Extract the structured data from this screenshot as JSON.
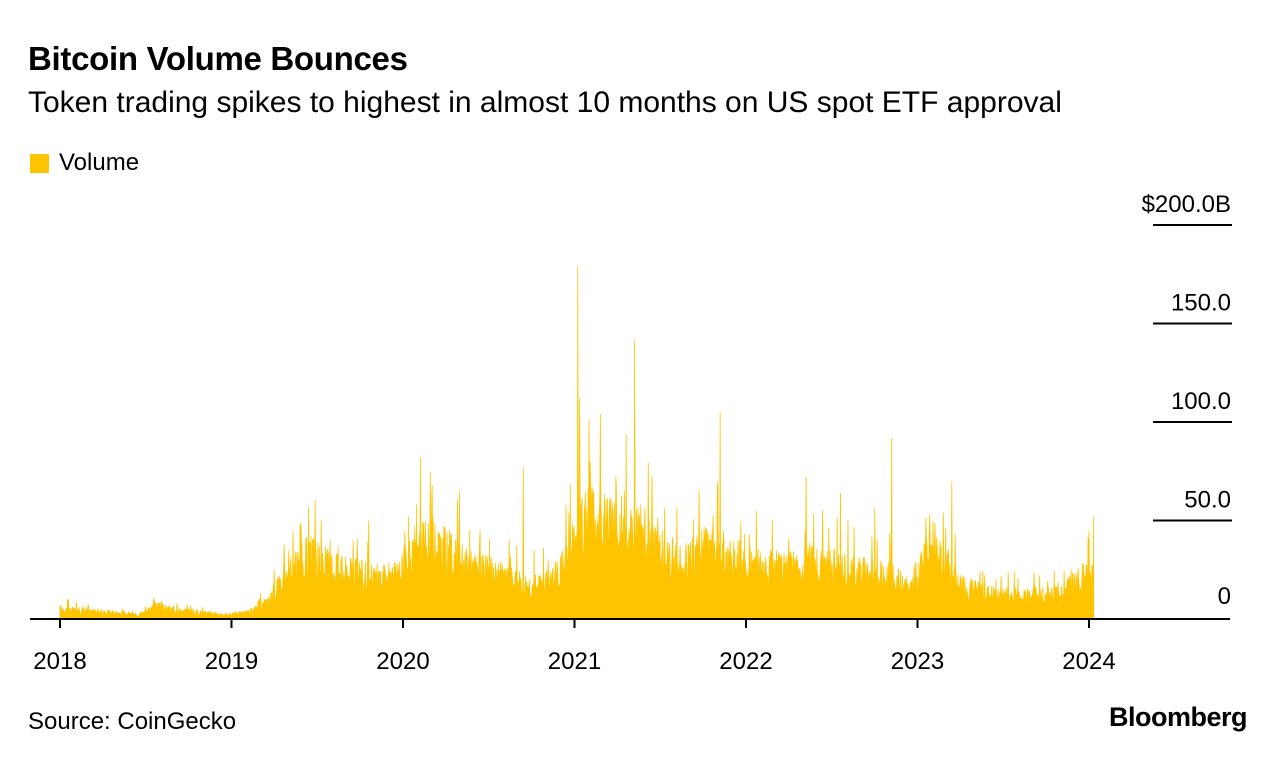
{
  "header": {
    "title": "Bitcoin Volume Bounces",
    "subtitle": "Token trading spikes to highest in almost 10 months on US spot ETF approval"
  },
  "legend": {
    "label": "Volume",
    "color": "#ffc400"
  },
  "footer": {
    "source": "Source: CoinGecko",
    "logo": "Bloomberg"
  },
  "colors": {
    "bar": "#ffc400",
    "axis": "#000000",
    "grid": "#000000"
  },
  "chart_data": {
    "type": "area",
    "title": "Bitcoin Volume Bounces",
    "series_name": "Volume",
    "units": "billions USD",
    "xlim": [
      2018.0,
      2024.75
    ],
    "ylim": [
      0,
      200
    ],
    "yticks": [
      {
        "value": 200,
        "label": "$200.0B"
      },
      {
        "value": 150,
        "label": "150.0"
      },
      {
        "value": 100,
        "label": "100.0"
      },
      {
        "value": 50,
        "label": "50.0"
      },
      {
        "value": 0,
        "label": "0"
      }
    ],
    "xticks": [
      {
        "value": 2018,
        "label": "2018"
      },
      {
        "value": 2019,
        "label": "2019"
      },
      {
        "value": 2020,
        "label": "2020"
      },
      {
        "value": 2021,
        "label": "2021"
      },
      {
        "value": 2022,
        "label": "2022"
      },
      {
        "value": 2023,
        "label": "2023"
      },
      {
        "value": 2024,
        "label": "2024"
      }
    ],
    "baseline_points": [
      [
        2018.0,
        5
      ],
      [
        2018.1,
        4
      ],
      [
        2018.3,
        3
      ],
      [
        2018.45,
        2
      ],
      [
        2018.55,
        6
      ],
      [
        2018.7,
        4
      ],
      [
        2018.85,
        3
      ],
      [
        2018.95,
        2
      ],
      [
        2019.1,
        3
      ],
      [
        2019.2,
        8
      ],
      [
        2019.3,
        18
      ],
      [
        2019.45,
        30
      ],
      [
        2019.6,
        24
      ],
      [
        2019.8,
        20
      ],
      [
        2019.95,
        20
      ],
      [
        2020.1,
        34
      ],
      [
        2020.2,
        36
      ],
      [
        2020.35,
        26
      ],
      [
        2020.5,
        22
      ],
      [
        2020.65,
        18
      ],
      [
        2020.8,
        16
      ],
      [
        2020.9,
        22
      ],
      [
        2020.97,
        30
      ],
      [
        2021.05,
        46
      ],
      [
        2021.15,
        48
      ],
      [
        2021.3,
        45
      ],
      [
        2021.4,
        42
      ],
      [
        2021.5,
        30
      ],
      [
        2021.6,
        26
      ],
      [
        2021.75,
        32
      ],
      [
        2021.85,
        32
      ],
      [
        2021.95,
        28
      ],
      [
        2022.1,
        24
      ],
      [
        2022.25,
        24
      ],
      [
        2022.4,
        26
      ],
      [
        2022.55,
        24
      ],
      [
        2022.7,
        22
      ],
      [
        2022.85,
        20
      ],
      [
        2022.95,
        14
      ],
      [
        2023.05,
        30
      ],
      [
        2023.15,
        28
      ],
      [
        2023.25,
        16
      ],
      [
        2023.4,
        12
      ],
      [
        2023.6,
        11
      ],
      [
        2023.8,
        12
      ],
      [
        2023.9,
        16
      ],
      [
        2023.97,
        20
      ],
      [
        2024.03,
        22
      ]
    ],
    "peaks": [
      [
        2018.05,
        10
      ],
      [
        2018.55,
        9
      ],
      [
        2019.25,
        25
      ],
      [
        2019.45,
        57
      ],
      [
        2019.8,
        50
      ],
      [
        2020.1,
        82
      ],
      [
        2020.17,
        68
      ],
      [
        2020.33,
        65
      ],
      [
        2020.7,
        77
      ],
      [
        2021.02,
        179
      ],
      [
        2021.03,
        112
      ],
      [
        2021.15,
        104
      ],
      [
        2021.35,
        142
      ],
      [
        2021.3,
        94
      ],
      [
        2021.85,
        105
      ],
      [
        2022.35,
        72
      ],
      [
        2022.55,
        64
      ],
      [
        2022.75,
        56
      ],
      [
        2022.85,
        92
      ],
      [
        2023.2,
        70
      ],
      [
        2023.15,
        54
      ],
      [
        2023.05,
        48
      ],
      [
        2024.0,
        45
      ],
      [
        2024.03,
        52
      ]
    ],
    "last_x": 2024.03
  }
}
